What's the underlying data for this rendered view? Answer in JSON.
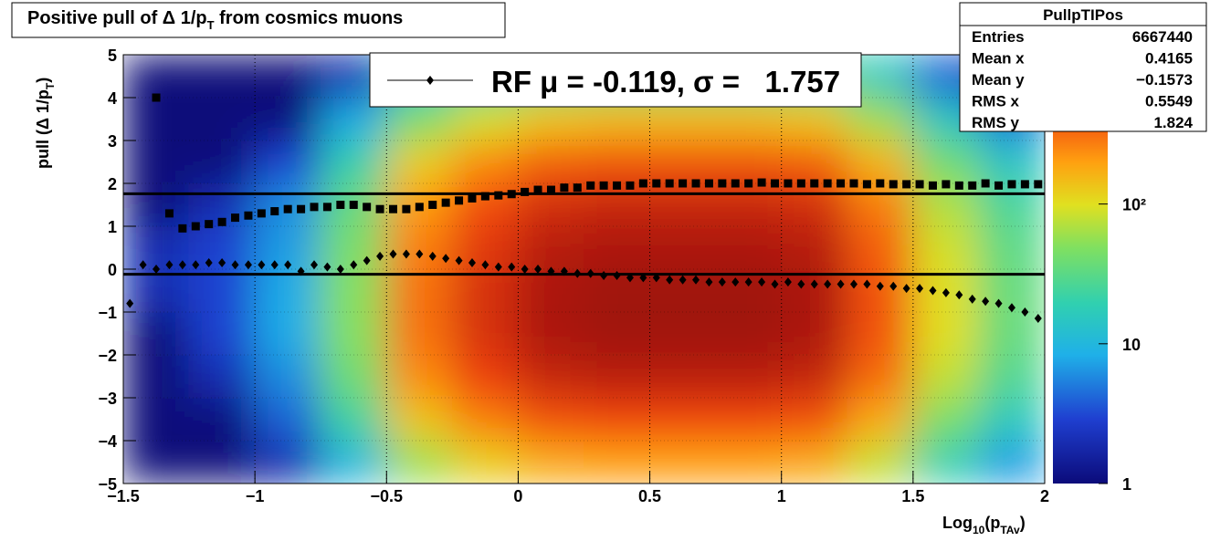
{
  "chart_data": {
    "type": "heatmap",
    "title": [
      "Positive pull of Δ 1/p",
      "T",
      " from cosmics muons"
    ],
    "xlabel": [
      "Log",
      "10",
      "(p",
      "TAv",
      ")"
    ],
    "ylabel": [
      "pull (Δ 1/p",
      "T",
      ")"
    ],
    "xlim": [
      -1.5,
      2
    ],
    "ylim": [
      -5,
      5
    ],
    "xticks": [
      {
        "value": -1.5,
        "label": "−1.5"
      },
      {
        "value": -1,
        "label": "−1"
      },
      {
        "value": -0.5,
        "label": "−0.5"
      },
      0,
      0.5,
      1,
      1.5,
      2
    ],
    "yticks": [
      {
        "value": -5,
        "label": "−5"
      },
      {
        "value": -4,
        "label": "−4"
      },
      {
        "value": -3,
        "label": "−3"
      },
      {
        "value": -2,
        "label": "−2"
      },
      {
        "value": -1,
        "label": "−1"
      },
      0,
      1,
      2,
      3,
      4,
      5
    ],
    "grid": true,
    "zlim": [
      1,
      1170
    ],
    "zlog": true,
    "zticks": [
      1,
      10,
      {
        "value": 100,
        "label": "10²"
      }
    ],
    "colorscale": [
      [
        0,
        "#0b0b7a"
      ],
      [
        0.15,
        "#1f3fd0"
      ],
      [
        0.3,
        "#1fb0e8"
      ],
      [
        0.42,
        "#30d0b0"
      ],
      [
        0.55,
        "#80e060"
      ],
      [
        0.65,
        "#e0e020"
      ],
      [
        0.75,
        "#ffa010"
      ],
      [
        0.87,
        "#f04010"
      ],
      [
        1,
        "#900808"
      ]
    ],
    "x_bins": [
      -1.5,
      -1.25,
      -1,
      -0.75,
      -0.5,
      -0.25,
      0,
      0.25,
      0.5,
      0.75,
      1,
      1.25,
      1.5,
      1.75,
      2
    ],
    "y_bins": [
      -5,
      -4,
      -3,
      -2,
      -1,
      0,
      1,
      2,
      3,
      4,
      5
    ],
    "z": [
      [
        1,
        1,
        1,
        1,
        2,
        2,
        1,
        1,
        1,
        1
      ],
      [
        1,
        1,
        2,
        3,
        3,
        3,
        2,
        1,
        1,
        1
      ],
      [
        2,
        4,
        6,
        8,
        8,
        7,
        6,
        3,
        1,
        1
      ],
      [
        10,
        23,
        40,
        50,
        50,
        45,
        35,
        20,
        8,
        2
      ],
      [
        60,
        135,
        240,
        300,
        300,
        270,
        210,
        120,
        45,
        12
      ],
      [
        120,
        270,
        480,
        600,
        600,
        540,
        420,
        240,
        90,
        24
      ],
      [
        180,
        405,
        720,
        900,
        900,
        810,
        630,
        360,
        135,
        36
      ],
      [
        200,
        450,
        800,
        1000,
        1000,
        900,
        700,
        400,
        150,
        40
      ],
      [
        200,
        450,
        800,
        1000,
        1000,
        900,
        700,
        400,
        150,
        40
      ],
      [
        200,
        450,
        800,
        1000,
        1000,
        900,
        700,
        400,
        150,
        40
      ],
      [
        180,
        405,
        720,
        900,
        900,
        810,
        630,
        360,
        135,
        36
      ],
      [
        80,
        180,
        320,
        400,
        400,
        360,
        280,
        160,
        60,
        16
      ],
      [
        20,
        45,
        80,
        100,
        100,
        90,
        70,
        40,
        15,
        4
      ],
      [
        7,
        16,
        28,
        35,
        35,
        32,
        25,
        14,
        5,
        1
      ]
    ],
    "x": [
      -1.475,
      -1.425,
      -1.375,
      -1.325,
      -1.275,
      -1.225,
      -1.175,
      -1.125,
      -1.075,
      -1.025,
      -0.975,
      -0.925,
      -0.875,
      -0.825,
      -0.775,
      -0.725,
      -0.675,
      -0.625,
      -0.575,
      -0.525,
      -0.475,
      -0.425,
      -0.375,
      -0.325,
      -0.275,
      -0.225,
      -0.175,
      -0.125,
      -0.075,
      -0.025,
      0.025,
      0.075,
      0.125,
      0.175,
      0.225,
      0.275,
      0.325,
      0.375,
      0.425,
      0.475,
      0.525,
      0.575,
      0.625,
      0.675,
      0.725,
      0.775,
      0.825,
      0.875,
      0.925,
      0.975,
      1.025,
      1.075,
      1.125,
      1.175,
      1.225,
      1.275,
      1.325,
      1.375,
      1.425,
      1.475,
      1.525,
      1.575,
      1.625,
      1.675,
      1.725,
      1.775,
      1.825,
      1.875,
      1.925,
      1.975
    ],
    "series": [
      {
        "marker": "diamond",
        "color": "#000000",
        "values": [
          -0.8,
          0.1,
          0.0,
          0.1,
          0.1,
          0.1,
          0.15,
          0.15,
          0.1,
          0.1,
          0.1,
          0.1,
          0.1,
          -0.05,
          0.1,
          0.05,
          0.0,
          0.1,
          0.2,
          0.3,
          0.35,
          0.35,
          0.35,
          0.3,
          0.25,
          0.2,
          0.15,
          0.1,
          0.05,
          0.05,
          0.0,
          0.0,
          -0.05,
          -0.05,
          -0.1,
          -0.1,
          -0.15,
          -0.15,
          -0.2,
          -0.2,
          -0.2,
          -0.25,
          -0.25,
          -0.25,
          -0.3,
          -0.3,
          -0.3,
          -0.3,
          -0.3,
          -0.35,
          -0.3,
          -0.35,
          -0.35,
          -0.35,
          -0.35,
          -0.35,
          -0.35,
          -0.4,
          -0.4,
          -0.45,
          -0.45,
          -0.5,
          -0.55,
          -0.6,
          -0.7,
          -0.75,
          -0.8,
          -0.9,
          -1.0,
          -1.15
        ]
      },
      {
        "marker": "square",
        "color": "#000000",
        "values": [
          null,
          null,
          4.0,
          1.3,
          0.95,
          1.0,
          1.05,
          1.1,
          1.2,
          1.25,
          1.3,
          1.35,
          1.4,
          1.4,
          1.45,
          1.45,
          1.5,
          1.5,
          1.45,
          1.4,
          1.4,
          1.4,
          1.45,
          1.5,
          1.55,
          1.6,
          1.65,
          1.7,
          1.72,
          1.75,
          1.8,
          1.85,
          1.85,
          1.9,
          1.9,
          1.95,
          1.95,
          1.95,
          1.95,
          2.0,
          2.0,
          2.0,
          2.0,
          2.0,
          2.0,
          2.0,
          2.0,
          2.0,
          2.02,
          2.0,
          2.0,
          2.0,
          2.0,
          2.0,
          2.0,
          2.0,
          1.98,
          2.0,
          1.98,
          1.98,
          1.98,
          1.95,
          1.98,
          1.95,
          1.95,
          2.0,
          1.95,
          1.98,
          1.98,
          1.98
        ]
      }
    ],
    "fit_mean": -0.119,
    "fit_sigma": 1.757,
    "legend_label": "RF μ = -0.119, σ =   1.757",
    "stats": {
      "title": "PullpTIPos",
      "rows": [
        [
          "Entries",
          "6667440"
        ],
        [
          "Mean x",
          "0.4165"
        ],
        [
          "Mean y",
          "−0.1573"
        ],
        [
          "RMS x",
          "0.5549"
        ],
        [
          "RMS y",
          "1.824"
        ]
      ]
    }
  }
}
